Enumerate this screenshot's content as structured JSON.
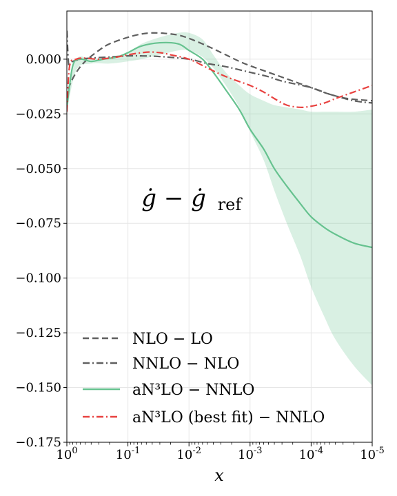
{
  "chart_data": {
    "type": "line",
    "title": "",
    "xlabel": "x",
    "ylabel": "",
    "x_scale": "log-reversed",
    "xlim": [
      1,
      1e-05
    ],
    "ylim": [
      -0.175,
      0.022
    ],
    "grid": true,
    "legend_position": "bottom-left",
    "x_tick_labels": [
      {
        "value": 1,
        "base": "10",
        "exp": "0"
      },
      {
        "value": 0.1,
        "base": "10",
        "exp": "-1"
      },
      {
        "value": 0.01,
        "base": "10",
        "exp": "-2"
      },
      {
        "value": 0.001,
        "base": "10",
        "exp": "-3"
      },
      {
        "value": 0.0001,
        "base": "10",
        "exp": "-4"
      },
      {
        "value": 1e-05,
        "base": "10",
        "exp": "-5"
      }
    ],
    "y_ticks": [
      0.0,
      -0.025,
      -0.05,
      -0.075,
      -0.1,
      -0.125,
      -0.15,
      -0.175
    ],
    "y_tick_labels": [
      "0.000",
      "−0.025",
      "−0.050",
      "−0.075",
      "−0.100",
      "−0.125",
      "−0.150",
      "−0.175"
    ],
    "annotation": {
      "main": "ġ − ġ",
      "sub": "ref",
      "x": 0.06,
      "y": -0.067
    },
    "band": {
      "series": "aN3LO − NNLO",
      "color": "#66c28f",
      "x": [
        1,
        0.7,
        0.4,
        0.2,
        0.1,
        0.06,
        0.03,
        0.015,
        0.01,
        0.006,
        0.004,
        0.0025,
        0.0015,
        0.001,
        0.0006,
        0.0004,
        0.00025,
        0.00015,
        0.0001,
        6e-05,
        4e-05,
        2e-05,
        1e-05
      ],
      "upper": [
        -0.018,
        0.0,
        0.0,
        0.001,
        0.003,
        0.007,
        0.01,
        0.012,
        0.012,
        0.009,
        0.002,
        -0.006,
        -0.012,
        -0.016,
        -0.019,
        -0.021,
        -0.022,
        -0.023,
        -0.024,
        -0.024,
        -0.024,
        -0.024,
        -0.023
      ],
      "lower": [
        -0.024,
        -0.005,
        -0.002,
        -0.002,
        -0.001,
        0.0,
        0.002,
        0.004,
        0.004,
        0.001,
        -0.004,
        -0.012,
        -0.022,
        -0.033,
        -0.046,
        -0.06,
        -0.075,
        -0.09,
        -0.104,
        -0.118,
        -0.128,
        -0.14,
        -0.149
      ]
    },
    "series": [
      {
        "name": "NLO − LO",
        "legend_label": "NLO − LO",
        "color": "#5f5f5f",
        "dash": "9,5",
        "x": [
          1,
          0.9,
          0.7,
          0.5,
          0.3,
          0.2,
          0.1,
          0.06,
          0.04,
          0.025,
          0.015,
          0.01,
          0.005,
          0.0025,
          0.0015,
          0.001,
          0.0005,
          0.00025,
          0.0001,
          5e-05,
          2.5e-05,
          1e-05
        ],
        "y": [
          -0.018,
          -0.012,
          -0.006,
          -0.001,
          0.004,
          0.007,
          0.01,
          0.0115,
          0.012,
          0.0118,
          0.011,
          0.0095,
          0.006,
          0.002,
          -0.001,
          -0.003,
          -0.006,
          -0.009,
          -0.013,
          -0.016,
          -0.018,
          -0.019
        ]
      },
      {
        "name": "NNLO − NLO",
        "legend_label": "NNLO − NLO",
        "color": "#5f5f5f",
        "dash": "10,4,2,4",
        "x": [
          1,
          0.97,
          0.93,
          0.88,
          0.8,
          0.6,
          0.4,
          0.2,
          0.1,
          0.06,
          0.03,
          0.01,
          0.005,
          0.003,
          0.002,
          0.001,
          0.0005,
          0.0003,
          0.0001,
          5e-05,
          2e-05,
          1e-05
        ],
        "y": [
          0.013,
          0.005,
          -0.003,
          -0.002,
          -0.001,
          0.0,
          0.0005,
          0.001,
          0.0015,
          0.0015,
          0.0012,
          0.0,
          -0.002,
          -0.003,
          -0.004,
          -0.006,
          -0.008,
          -0.01,
          -0.013,
          -0.016,
          -0.019,
          -0.02
        ]
      },
      {
        "name": "aN3LO − NNLO",
        "legend_label": "aN³LO − NNLO",
        "color": "#66c28f",
        "dash": "",
        "x": [
          1,
          0.8,
          0.6,
          0.4,
          0.25,
          0.15,
          0.1,
          0.06,
          0.03,
          0.015,
          0.01,
          0.006,
          0.004,
          0.0025,
          0.0015,
          0.001,
          0.0006,
          0.0004,
          0.00025,
          0.00015,
          0.0001,
          6e-05,
          4e-05,
          2e-05,
          1e-05
        ],
        "y": [
          -0.022,
          -0.003,
          0.0,
          -0.001,
          0.0,
          0.001,
          0.003,
          0.006,
          0.0075,
          0.007,
          0.004,
          0.0,
          -0.006,
          -0.014,
          -0.023,
          -0.032,
          -0.041,
          -0.05,
          -0.058,
          -0.066,
          -0.072,
          -0.077,
          -0.08,
          -0.084,
          -0.086
        ]
      },
      {
        "name": "aN3LO (best fit) − NNLO",
        "legend_label": "aN³LO (best fit) − NNLO",
        "color": "#e8413f",
        "dash": "10,4,2,4",
        "x": [
          1,
          0.9,
          0.7,
          0.5,
          0.3,
          0.15,
          0.1,
          0.05,
          0.03,
          0.02,
          0.01,
          0.005,
          0.003,
          0.002,
          0.001,
          0.0006,
          0.0004,
          0.00025,
          0.00015,
          0.0001,
          6e-05,
          4e-05,
          2e-05,
          1e-05
        ],
        "y": [
          -0.024,
          -0.003,
          0.0,
          0.0005,
          0.0,
          0.001,
          0.002,
          0.0032,
          0.003,
          0.002,
          0.0,
          -0.004,
          -0.007,
          -0.009,
          -0.012,
          -0.015,
          -0.018,
          -0.021,
          -0.022,
          -0.0215,
          -0.02,
          -0.018,
          -0.015,
          -0.012
        ]
      }
    ]
  }
}
